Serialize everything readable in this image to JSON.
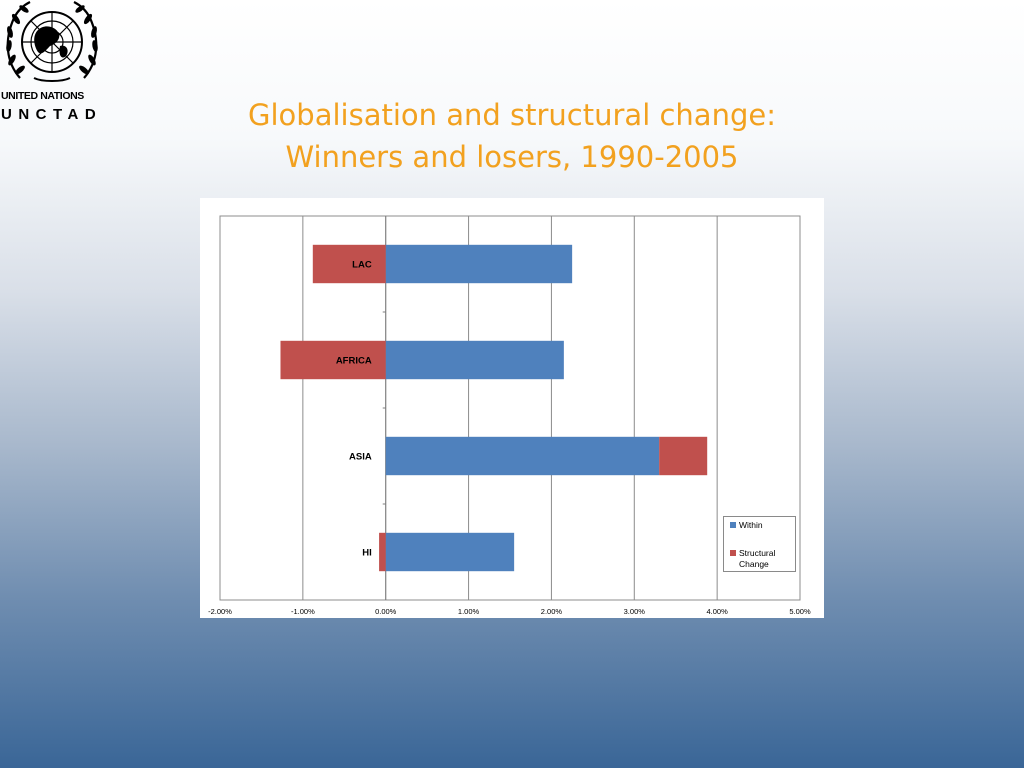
{
  "logo": {
    "line1": "UNITED NATIONS",
    "line2": "UNCTAD",
    "emblem_icon": "un-emblem-icon"
  },
  "title": {
    "line1": "Globalisation and structural change:",
    "line2": "Winners and losers, 1990-2005"
  },
  "chart_data": {
    "type": "bar",
    "orientation": "horizontal",
    "stacked": true,
    "title": "",
    "xlabel": "",
    "ylabel": "",
    "categories": [
      "LAC",
      "AFRICA",
      "ASIA",
      "HI"
    ],
    "series": [
      {
        "name": "Within",
        "color": "#4f81bd",
        "values": [
          2.25,
          2.15,
          3.3,
          1.55
        ]
      },
      {
        "name": "Structural Change",
        "color": "#c0504d",
        "values": [
          -0.88,
          -1.27,
          0.58,
          -0.08
        ]
      }
    ],
    "xlim": [
      -2.0,
      5.0
    ],
    "xticks": [
      -2.0,
      -1.0,
      0.0,
      1.0,
      2.0,
      3.0,
      4.0,
      5.0
    ],
    "xtick_labels": [
      "-2.00%",
      "-1.00%",
      "0.00%",
      "1.00%",
      "2.00%",
      "3.00%",
      "4.00%",
      "5.00%"
    ],
    "grid": "vertical",
    "legend_position": "bottom-right",
    "legend": [
      "Within",
      "Structural Change"
    ]
  }
}
